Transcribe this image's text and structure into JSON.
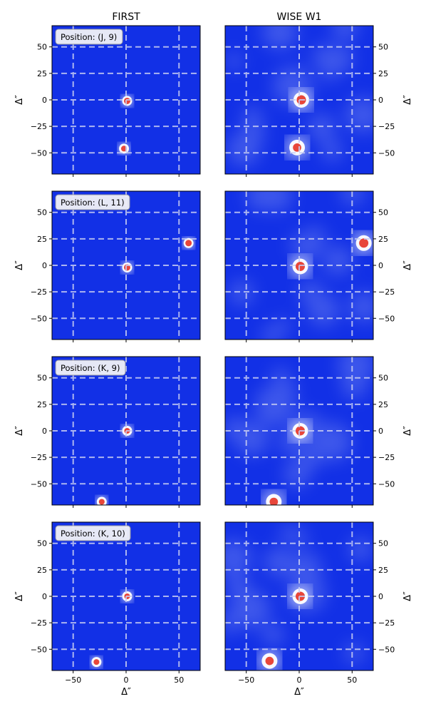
{
  "figure": {
    "column_titles": [
      "FIRST",
      "WISE W1"
    ],
    "panel_axis_label": "Δ″"
  },
  "colors": {
    "background": "#1230e6",
    "grid": "#c8cdf2",
    "source_core": "#e8463a",
    "source_halo": "#ffffff"
  },
  "chart_data": [
    {
      "type": "heatmap",
      "survey": "FIRST",
      "position_label": "Position: (J, 9)",
      "xlim": [
        -70,
        70
      ],
      "ylim": [
        -70,
        70
      ],
      "xticks": [
        -50,
        0,
        50
      ],
      "yticks": [
        -50,
        -25,
        0,
        25,
        50
      ],
      "xlabel": "",
      "ylabel": "Δ″",
      "grid": true,
      "sources": [
        {
          "x": 1,
          "y": -1,
          "strength": 1.0
        },
        {
          "x": -2,
          "y": -46,
          "strength": 0.9
        }
      ]
    },
    {
      "type": "heatmap",
      "survey": "WISE W1",
      "position_label": "",
      "xlim": [
        -70,
        70
      ],
      "ylim": [
        -70,
        70
      ],
      "xticks": [
        -50,
        0,
        50
      ],
      "yticks": [
        -50,
        -25,
        0,
        25,
        50
      ],
      "xlabel": "",
      "ylabel": "Δ″",
      "grid": true,
      "sources": [
        {
          "x": 2,
          "y": 0,
          "strength": 1.0
        },
        {
          "x": -2,
          "y": -45,
          "strength": 0.9
        }
      ]
    },
    {
      "type": "heatmap",
      "survey": "FIRST",
      "position_label": "Position: (L, 11)",
      "xlim": [
        -70,
        70
      ],
      "ylim": [
        -70,
        70
      ],
      "xticks": [
        -50,
        0,
        50
      ],
      "yticks": [
        -50,
        -25,
        0,
        25,
        50
      ],
      "xlabel": "",
      "ylabel": "Δ″",
      "grid": true,
      "sources": [
        {
          "x": 1,
          "y": -2,
          "strength": 1.0
        },
        {
          "x": 59,
          "y": 21,
          "strength": 1.0
        }
      ]
    },
    {
      "type": "heatmap",
      "survey": "WISE W1",
      "position_label": "",
      "xlim": [
        -70,
        70
      ],
      "ylim": [
        -70,
        70
      ],
      "xticks": [
        -50,
        0,
        50
      ],
      "yticks": [
        -50,
        -25,
        0,
        25,
        50
      ],
      "xlabel": "",
      "ylabel": "Δ″",
      "grid": true,
      "sources": [
        {
          "x": 1,
          "y": -1,
          "strength": 1.0
        },
        {
          "x": 61,
          "y": 21,
          "strength": 1.0
        }
      ]
    },
    {
      "type": "heatmap",
      "survey": "FIRST",
      "position_label": "Position: (K, 9)",
      "xlim": [
        -70,
        70
      ],
      "ylim": [
        -70,
        70
      ],
      "xticks": [
        -50,
        0,
        50
      ],
      "yticks": [
        -50,
        -25,
        0,
        25,
        50
      ],
      "xlabel": "",
      "ylabel": "Δ″",
      "grid": true,
      "sources": [
        {
          "x": 1,
          "y": 0,
          "strength": 0.9
        },
        {
          "x": -23,
          "y": -67,
          "strength": 0.9
        }
      ]
    },
    {
      "type": "heatmap",
      "survey": "WISE W1",
      "position_label": "",
      "xlim": [
        -70,
        70
      ],
      "ylim": [
        -70,
        70
      ],
      "xticks": [
        -50,
        0,
        50
      ],
      "yticks": [
        -50,
        -25,
        0,
        25,
        50
      ],
      "xlabel": "",
      "ylabel": "Δ″",
      "grid": true,
      "sources": [
        {
          "x": 1,
          "y": 0,
          "strength": 1.0
        },
        {
          "x": -24,
          "y": -67,
          "strength": 0.9
        }
      ]
    },
    {
      "type": "heatmap",
      "survey": "FIRST",
      "position_label": "Position: (K, 10)",
      "xlim": [
        -70,
        70
      ],
      "ylim": [
        -70,
        70
      ],
      "xticks": [
        -50,
        0,
        50
      ],
      "yticks": [
        -50,
        -25,
        0,
        25,
        50
      ],
      "xlabel": "Δ″",
      "ylabel": "Δ″",
      "grid": true,
      "sources": [
        {
          "x": 1,
          "y": 0,
          "strength": 0.9
        },
        {
          "x": -28,
          "y": -62,
          "strength": 0.9
        }
      ]
    },
    {
      "type": "heatmap",
      "survey": "WISE W1",
      "position_label": "",
      "xlim": [
        -70,
        70
      ],
      "ylim": [
        -70,
        70
      ],
      "xticks": [
        -50,
        0,
        50
      ],
      "yticks": [
        -50,
        -25,
        0,
        25,
        50
      ],
      "xlabel": "Δ″",
      "ylabel": "Δ″",
      "grid": true,
      "sources": [
        {
          "x": 1,
          "y": 0,
          "strength": 1.0
        },
        {
          "x": -28,
          "y": -61,
          "strength": 0.9
        }
      ]
    }
  ]
}
